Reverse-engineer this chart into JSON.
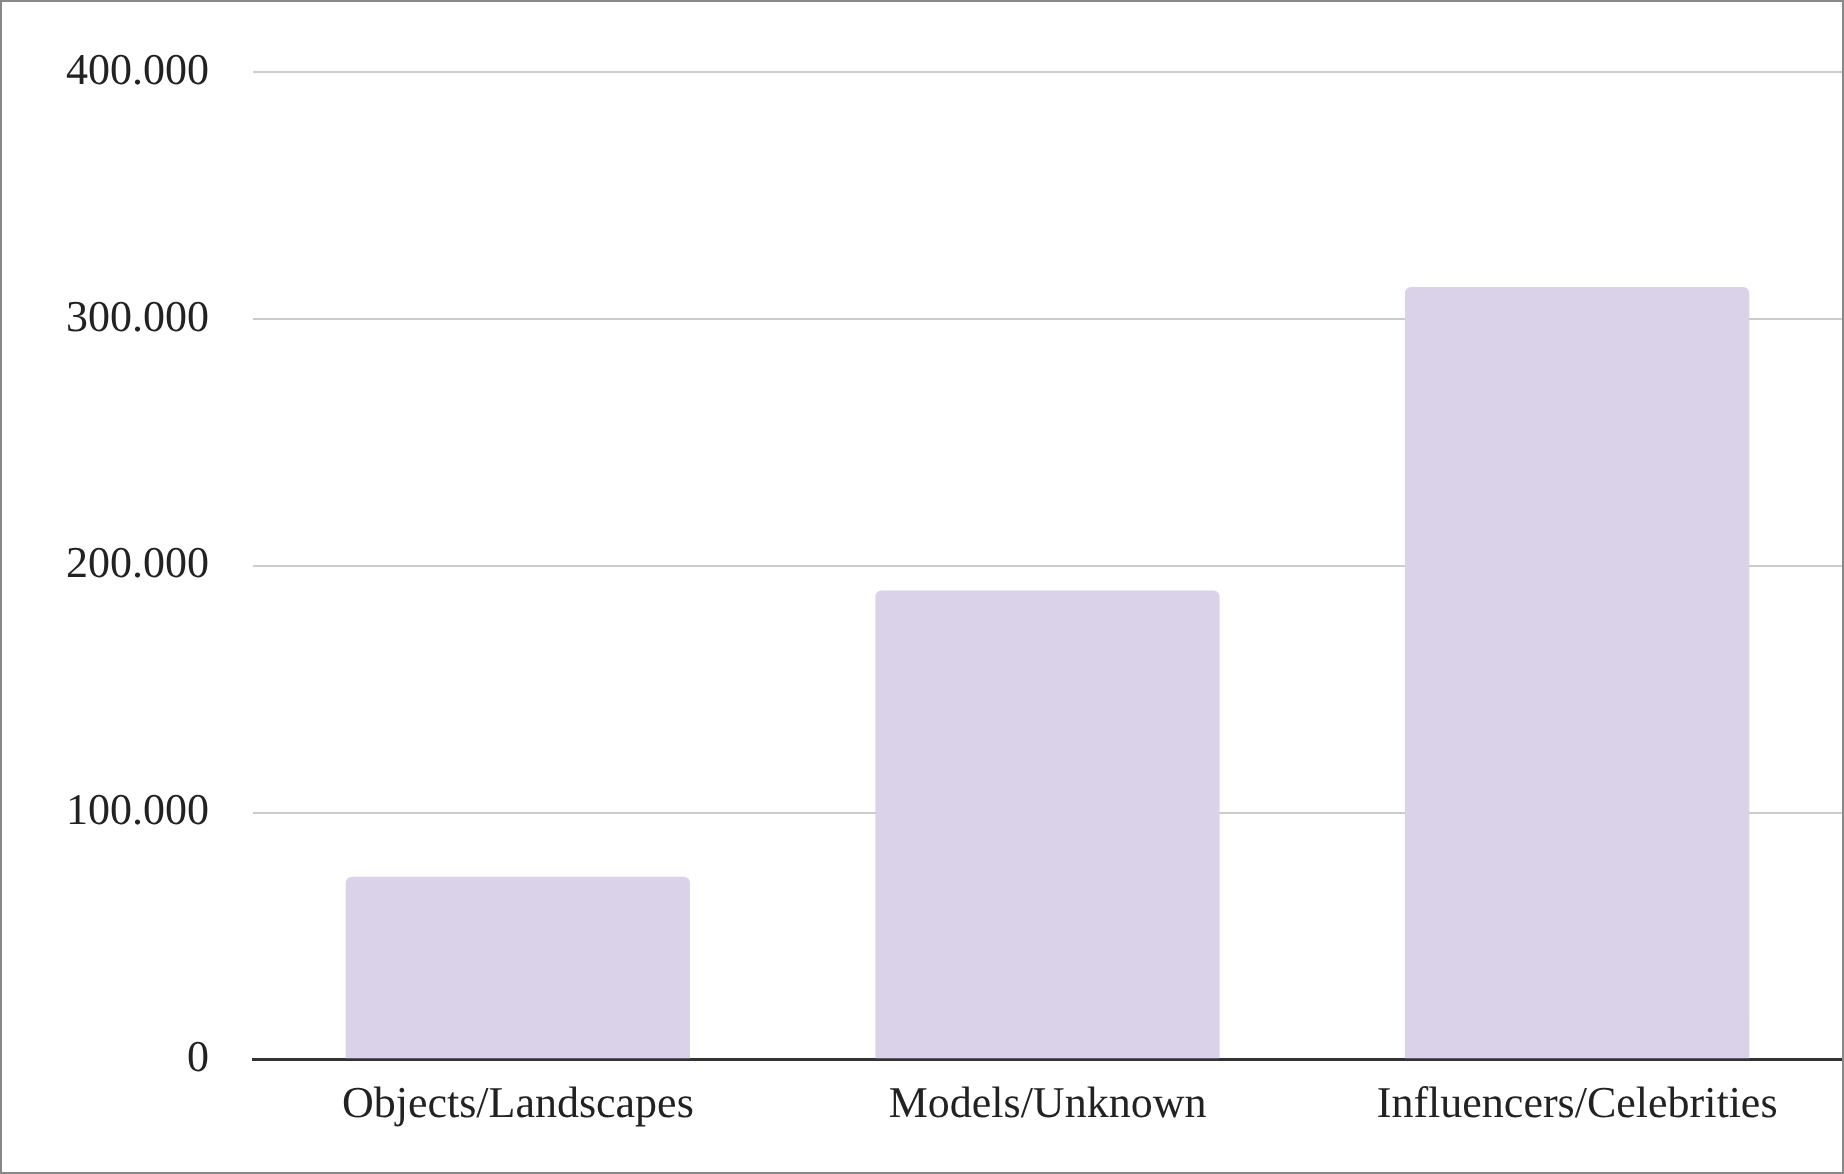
{
  "chart_data": {
    "type": "bar",
    "categories": [
      "Objects/Landscapes",
      "Models/Unknown",
      "Influencers/Celebrities"
    ],
    "values": [
      74000,
      190000,
      313000
    ],
    "color": "#d9d2e9",
    "ylim": [
      0,
      400000
    ],
    "yticks": [
      {
        "value": 0,
        "label": "0"
      },
      {
        "value": 100000,
        "label": "100.000"
      },
      {
        "value": 200000,
        "label": "200.000"
      },
      {
        "value": 300000,
        "label": "300.000"
      },
      {
        "value": 400000,
        "label": "400.000"
      }
    ],
    "grid": "y"
  }
}
